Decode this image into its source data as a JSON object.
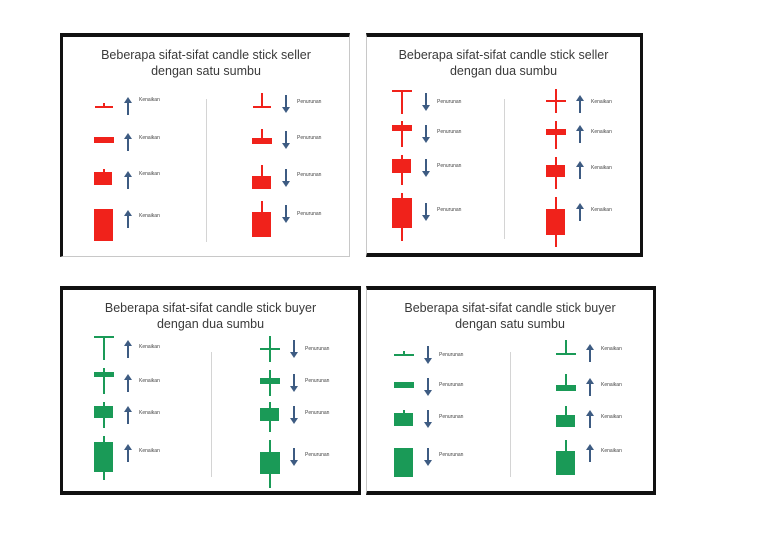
{
  "colors": {
    "seller": "#f0221b",
    "buyer": "#1a9a57",
    "arrow": "#3d5b82",
    "text": "#3a3a3a"
  },
  "panels": [
    {
      "id": "seller-one-wick",
      "title_line1": "Beberapa sifat-sifat candle stick seller",
      "title_line2": "dengan satu sumbu",
      "candle_color": "seller",
      "left_column": [
        {
          "label": "Kenaikan",
          "arrow": "up"
        },
        {
          "label": "Kenaikan",
          "arrow": "up"
        },
        {
          "label": "Kenaikan",
          "arrow": "up"
        },
        {
          "label": "Kenaikan",
          "arrow": "up"
        }
      ],
      "right_column": [
        {
          "label": "Penurunan",
          "arrow": "down"
        },
        {
          "label": "Penurunan",
          "arrow": "down"
        },
        {
          "label": "Penurunan",
          "arrow": "down"
        },
        {
          "label": "Penurunan",
          "arrow": "down"
        }
      ]
    },
    {
      "id": "seller-two-wick",
      "title_line1": "Beberapa sifat-sifat candle stick seller",
      "title_line2": "dengan dua sumbu",
      "candle_color": "seller",
      "left_column": [
        {
          "label": "Penurunan",
          "arrow": "down"
        },
        {
          "label": "Penurunan",
          "arrow": "down"
        },
        {
          "label": "Penurunan",
          "arrow": "down"
        },
        {
          "label": "Penurunan",
          "arrow": "down"
        }
      ],
      "right_column": [
        {
          "label": "Kenaikan",
          "arrow": "up"
        },
        {
          "label": "Kenaikan",
          "arrow": "up"
        },
        {
          "label": "Kenaikan",
          "arrow": "up"
        },
        {
          "label": "Kenaikan",
          "arrow": "up"
        }
      ]
    },
    {
      "id": "buyer-two-wick",
      "title_line1": "Beberapa sifat-sifat candle stick buyer",
      "title_line2": "dengan dua sumbu",
      "candle_color": "buyer",
      "left_column": [
        {
          "label": "Kenaikan",
          "arrow": "up"
        },
        {
          "label": "Kenaikan",
          "arrow": "up"
        },
        {
          "label": "Kenaikan",
          "arrow": "up"
        },
        {
          "label": "Kenaikan",
          "arrow": "up"
        }
      ],
      "right_column": [
        {
          "label": "Penurunan",
          "arrow": "down"
        },
        {
          "label": "Penurunan",
          "arrow": "down"
        },
        {
          "label": "Penurunan",
          "arrow": "down"
        },
        {
          "label": "Penurunan",
          "arrow": "down"
        }
      ]
    },
    {
      "id": "buyer-one-wick",
      "title_line1": "Beberapa sifat-sifat candle stick buyer",
      "title_line2": "dengan satu sumbu",
      "candle_color": "buyer",
      "left_column": [
        {
          "label": "Penurunan",
          "arrow": "down"
        },
        {
          "label": "Penurunan",
          "arrow": "down"
        },
        {
          "label": "Penurunan",
          "arrow": "down"
        },
        {
          "label": "Penurunan",
          "arrow": "down"
        }
      ],
      "right_column": [
        {
          "label": "Kenaikan",
          "arrow": "up"
        },
        {
          "label": "Kenaikan",
          "arrow": "up"
        },
        {
          "label": "Kenaikan",
          "arrow": "up"
        },
        {
          "label": "Kenaikan",
          "arrow": "up"
        }
      ]
    }
  ]
}
